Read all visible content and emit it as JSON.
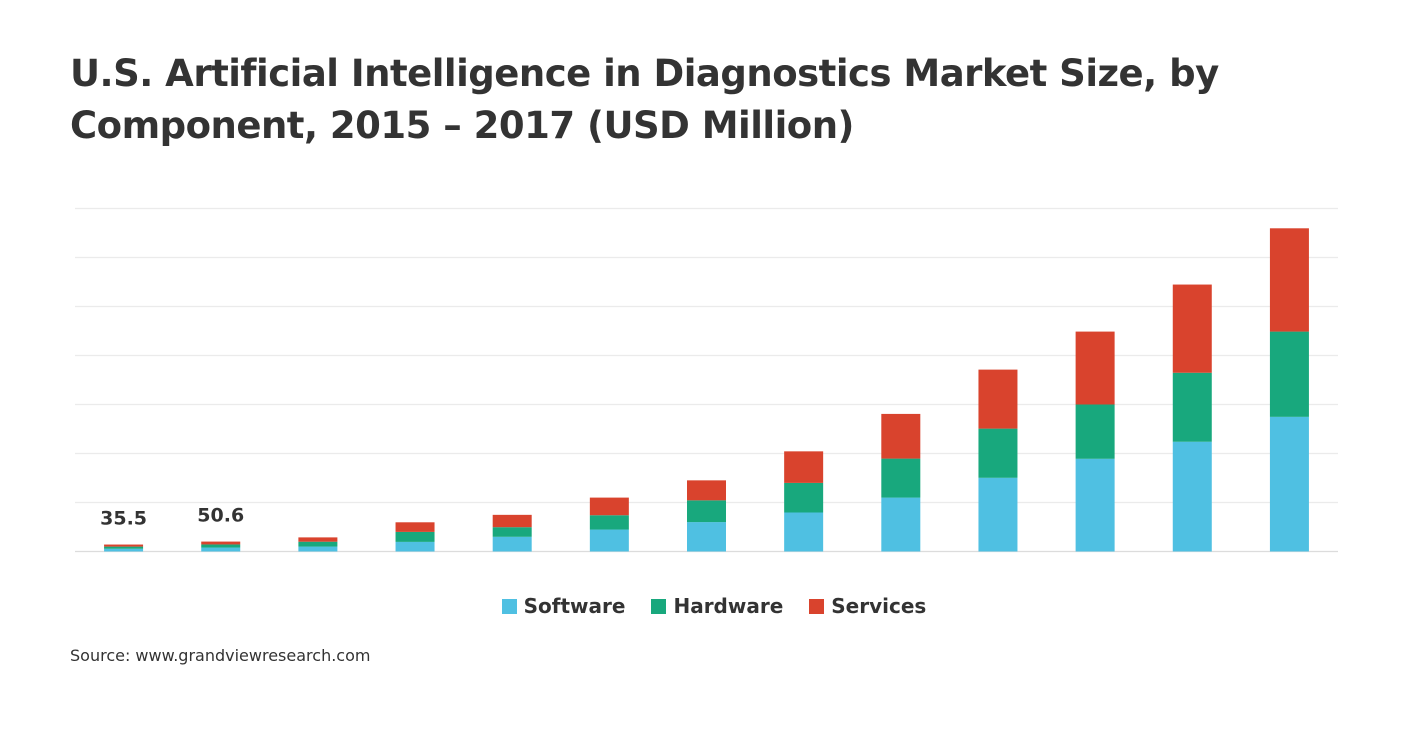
{
  "chart_data": {
    "type": "bar",
    "stacked": true,
    "title": "U.S. Artificial Intelligence in Diagnostics Market Size, by Component, 2015 – 2017 (USD Million)",
    "xlabel": "",
    "ylabel": "",
    "ylim": [
      0,
      1750
    ],
    "grid": true,
    "legend_position": "bottom",
    "categories": [
      "",
      "",
      "",
      "",
      "",
      "",
      "",
      "",
      "",
      "",
      "",
      "",
      ""
    ],
    "series": [
      {
        "name": "Software",
        "color": "#4FC0E2",
        "values": [
          14,
          20,
          25,
          49,
          75,
          112,
          150,
          199,
          275,
          376,
          473,
          560,
          687
        ]
      },
      {
        "name": "Hardware",
        "color": "#18A87D",
        "values": [
          11,
          16,
          25,
          51,
          49,
          73,
          111,
          151,
          199,
          251,
          277,
          352,
          435
        ]
      },
      {
        "name": "Services",
        "color": "#D9432D",
        "values": [
          10.5,
          14.6,
          22,
          49,
          63,
          90,
          102,
          161,
          228,
          301,
          372,
          450,
          527
        ]
      }
    ],
    "data_labels": [
      {
        "index": 0,
        "text": "35.5"
      },
      {
        "index": 1,
        "text": "50.6"
      }
    ]
  },
  "source": "Source: www.grandviewresearch.com"
}
